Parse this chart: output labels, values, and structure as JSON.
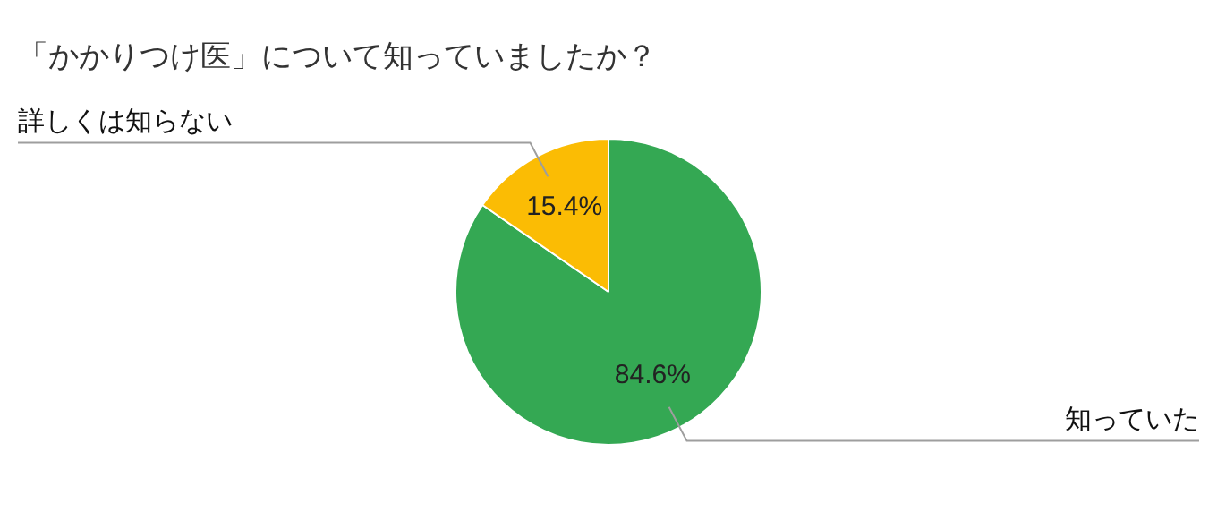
{
  "chart_data": {
    "type": "pie",
    "title": "「かかりつけ医」について知っていましたか？",
    "categories": [
      "知っていた",
      "詳しくは知らない"
    ],
    "values": [
      84.6,
      15.4
    ],
    "colors": [
      "#34a853",
      "#fbbc04"
    ],
    "value_labels": [
      "84.6%",
      "15.4%"
    ],
    "legend": false
  }
}
